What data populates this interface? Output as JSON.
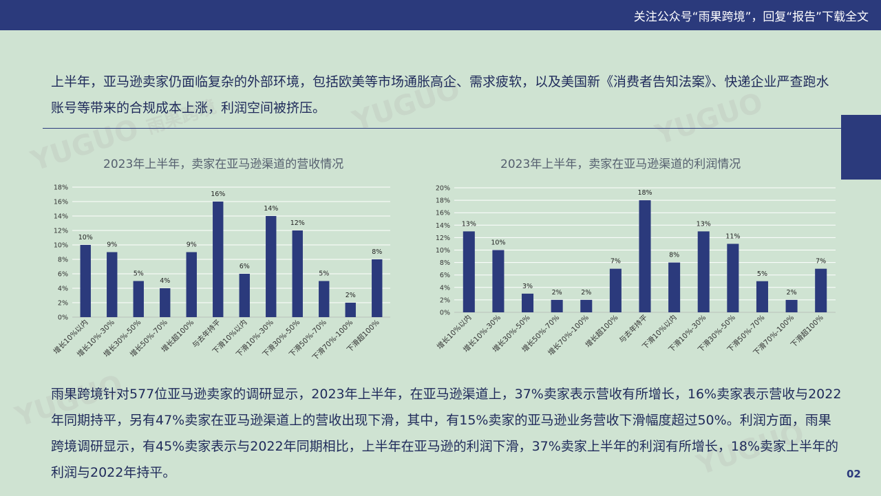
{
  "header": {
    "note": "关注公众号“雨果跨境”，回复“报告”下载全文"
  },
  "intro_text": "上半年，亚马逊卖家仍面临复杂的外部环境，包括欧美等市场通胀高企、需求疲软，以及美国新《消费者告知法案》、快递企业严查跑水账号等带来的合规成本上涨，利润空间被挤压。",
  "watermark": {
    "latin": "YUGUO",
    "cjk": "雨果跨境"
  },
  "colors": {
    "bar": "#2b3a7c",
    "header": "#2b3a7c",
    "background": "#cfe3d2"
  },
  "chart_data": [
    {
      "type": "bar",
      "title": "2023年上半年，卖家在亚马逊渠道的营收情况",
      "categories": [
        "增长10%以内",
        "增长10%-30%",
        "增长30%-50%",
        "增长50%-70%",
        "增长超100%",
        "与去年持平",
        "下滑10%以内",
        "下滑10%-30%",
        "下滑30%-50%",
        "下滑50%-70%",
        "下滑70%-100%",
        "下滑超100%"
      ],
      "values": [
        10,
        9,
        5,
        4,
        9,
        16,
        6,
        14,
        12,
        5,
        2,
        8
      ],
      "data_labels": [
        "10%",
        "9%",
        "5%",
        "4%",
        "9%",
        "16%",
        "6%",
        "14%",
        "12%",
        "5%",
        "2%",
        "8%"
      ],
      "ylim": [
        0,
        18
      ],
      "yticks": [
        "0%",
        "2%",
        "4%",
        "6%",
        "8%",
        "10%",
        "12%",
        "14%",
        "16%",
        "18%"
      ],
      "grid": true
    },
    {
      "type": "bar",
      "title": "2023年上半年，卖家在亚马逊渠道的利润情况",
      "categories": [
        "增长10%以内",
        "增长10%-30%",
        "增长30%-50%",
        "增长50%-70%",
        "增长70%-100%",
        "增长超100%",
        "与去年持平",
        "下滑10%以内",
        "下滑10%-30%",
        "下滑30%-50%",
        "下滑50%-70%",
        "下滑70%-100%",
        "下滑超100%"
      ],
      "values": [
        13,
        10,
        3,
        2,
        2,
        7,
        18,
        8,
        13,
        11,
        5,
        2,
        7
      ],
      "data_labels": [
        "13%",
        "10%",
        "3%",
        "2%",
        "2%",
        "7%",
        "18%",
        "8%",
        "13%",
        "11%",
        "5%",
        "2%",
        "7%"
      ],
      "ylim": [
        0,
        20
      ],
      "yticks": [
        "0%",
        "2%",
        "4%",
        "6%",
        "8%",
        "10%",
        "12%",
        "14%",
        "16%",
        "18%",
        "20%"
      ],
      "grid": true
    }
  ],
  "summary_text": "雨果跨境针对577位亚马逊卖家的调研显示，2023年上半年，在亚马逊渠道上，37%卖家表示营收有所增长，16%卖家表示营收与2022年同期持平，另有47%卖家在亚马逊渠道上的营收出现下滑，其中，有15%卖家的亚马逊业务营收下滑幅度超过50%。利润方面，雨果跨境调研显示，有45%卖家表示与2022年同期相比，上半年在亚马逊的利润下滑，37%卖家上半年的利润有所增长，18%卖家上半年的利润与2022年持平。",
  "page_number": "02"
}
